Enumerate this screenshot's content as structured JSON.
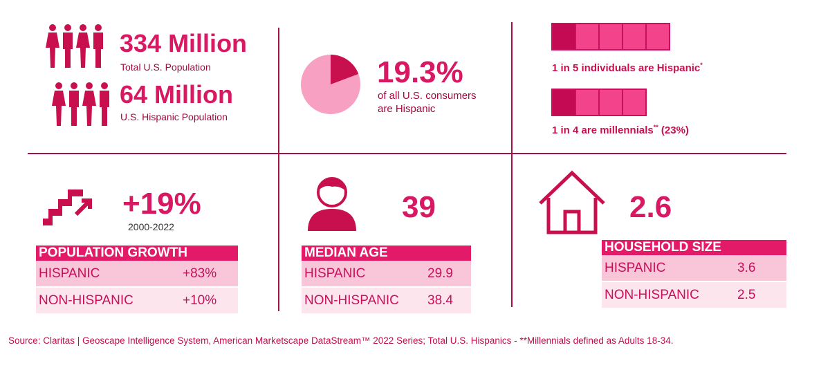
{
  "colors": {
    "primary": "#d81863",
    "dark": "#a61044",
    "light": "#f9c5d9",
    "lighter": "#fde5ee",
    "pie_light": "#f7a0c2"
  },
  "population": {
    "total_value": "334 Million",
    "total_label": "Total U.S. Population",
    "hispanic_value": "64 Million",
    "hispanic_label": "U.S. Hispanic Population",
    "icon": "people-icon"
  },
  "consumers": {
    "percent": "19.3%",
    "line1": "of all U.S. consumers",
    "line2": "are Hispanic",
    "pie_fraction": 0.193
  },
  "ratios": {
    "hispanic_text": "1 in 5 individuals are Hispanic",
    "hispanic_mark": "*",
    "hispanic_segments": 5,
    "millennial_text": "1 in 4 are millennials",
    "millennial_mark": "**",
    "millennial_suffix": " (23%)",
    "millennial_segments": 4
  },
  "growth": {
    "value": "+19%",
    "period": "2000-2022",
    "icon": "stairs-growth-icon",
    "table_title": "POPULATION GROWTH",
    "rows": [
      {
        "label": "HISPANIC",
        "value": "+83%"
      },
      {
        "label": "NON-HISPANIC",
        "value": "+10%"
      }
    ]
  },
  "age": {
    "value": "39",
    "icon": "person-icon",
    "table_title": "MEDIAN AGE",
    "rows": [
      {
        "label": "HISPANIC",
        "value": "29.9"
      },
      {
        "label": "NON-HISPANIC",
        "value": "38.4"
      }
    ]
  },
  "household": {
    "value": "2.6",
    "icon": "house-icon",
    "table_title": "HOUSEHOLD SIZE",
    "rows": [
      {
        "label": "HISPANIC",
        "value": "3.6"
      },
      {
        "label": "NON-HISPANIC",
        "value": "2.5"
      }
    ]
  },
  "source": "Source: Claritas | Geoscape Intelligence System, American Marketscape DataStream™ 2022 Series; Total U.S. Hispanics   - **Millennials defined as Adults 18-34."
}
